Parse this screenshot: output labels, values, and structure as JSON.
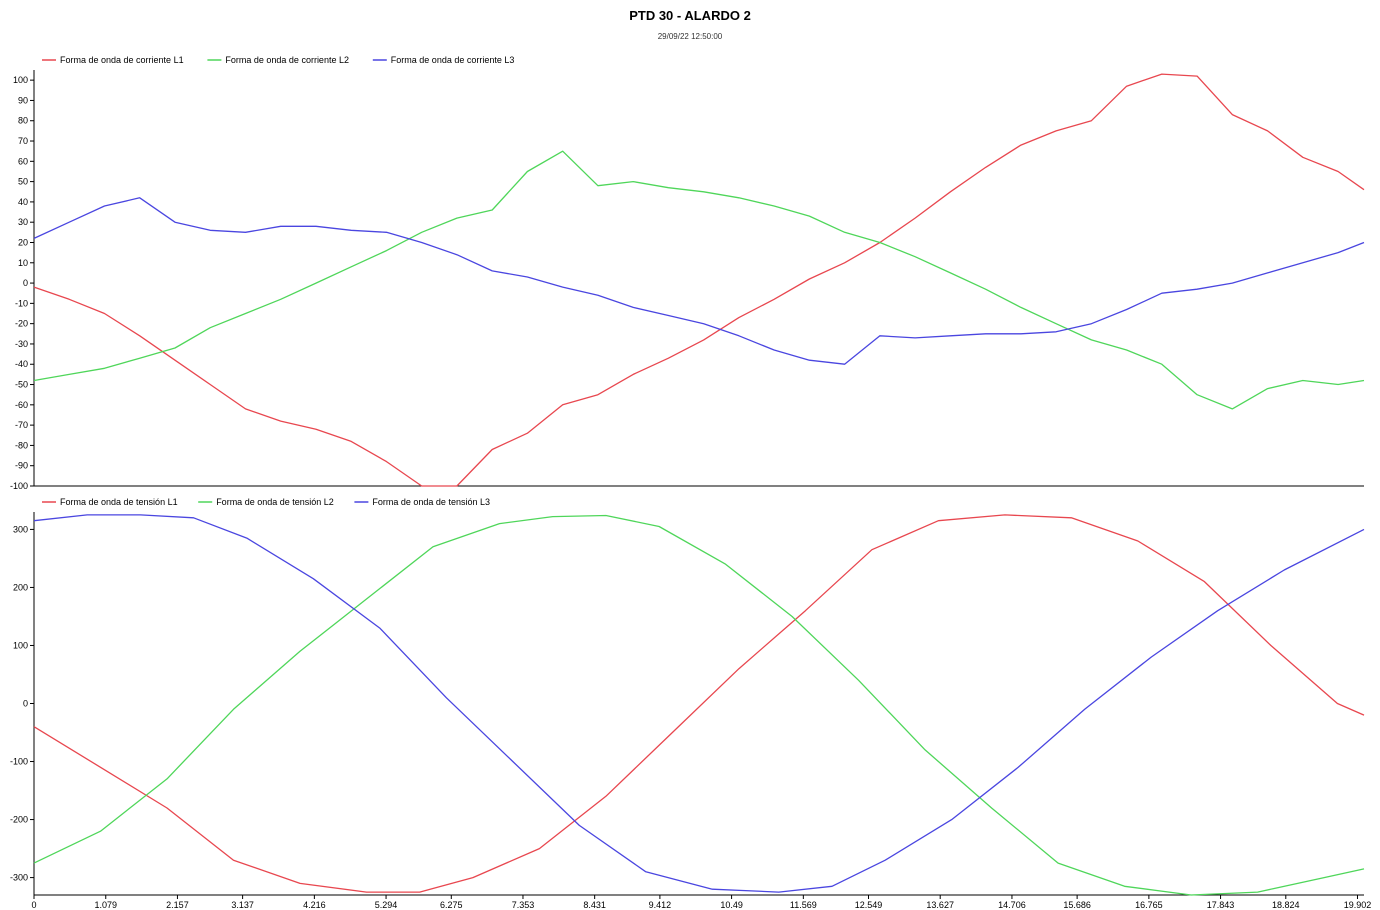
{
  "title": "PTD 30 - ALARDO 2",
  "subtitle": "29/09/22 12:50:00",
  "colors": {
    "L1": "#e8474f",
    "L2": "#4fd65a",
    "L3": "#4a46e0"
  },
  "chart_data": [
    {
      "type": "line",
      "title": "",
      "xlabel": "",
      "ylabel": "",
      "ylim": [
        -100,
        105
      ],
      "yticks": [
        "-100",
        "-90",
        "-80",
        "-70",
        "-60",
        "-50",
        "-40",
        "-30",
        "-20",
        "-10",
        "0",
        "10",
        "20",
        "30",
        "40",
        "50",
        "60",
        "70",
        "80",
        "90",
        "100"
      ],
      "legend_position": "top-left",
      "series": [
        {
          "name": "Forma de onda de corriente L1",
          "color_key": "L1",
          "x": [
            0,
            0.53,
            1.06,
            1.59,
            2.12,
            2.65,
            3.18,
            3.71,
            4.24,
            4.77,
            5.3,
            5.83,
            6.36,
            6.89,
            7.42,
            7.95,
            8.48,
            9.01,
            9.54,
            10.07,
            10.6,
            11.13,
            11.66,
            12.19,
            12.72,
            13.25,
            13.78,
            14.31,
            14.84,
            15.37,
            15.9,
            16.43,
            16.96,
            17.49,
            18.02,
            18.55,
            19.08,
            19.61,
            20.0
          ],
          "values": [
            -2,
            -8,
            -15,
            -26,
            -38,
            -50,
            -62,
            -68,
            -72,
            -78,
            -88,
            -100,
            -100,
            -82,
            -74,
            -60,
            -55,
            -45,
            -37,
            -28,
            -17,
            -8,
            2,
            10,
            20,
            32,
            45,
            57,
            68,
            75,
            80,
            97,
            103,
            102,
            83,
            75,
            62,
            55,
            46
          ]
        },
        {
          "name": "Forma de onda de corriente L2",
          "color_key": "L2",
          "x": [
            0,
            0.53,
            1.06,
            1.59,
            2.12,
            2.65,
            3.18,
            3.71,
            4.24,
            4.77,
            5.3,
            5.83,
            6.36,
            6.89,
            7.42,
            7.95,
            8.48,
            9.01,
            9.54,
            10.07,
            10.6,
            11.13,
            11.66,
            12.19,
            12.72,
            13.25,
            13.78,
            14.31,
            14.84,
            15.37,
            15.9,
            16.43,
            16.96,
            17.49,
            18.02,
            18.55,
            19.08,
            19.61,
            20.0
          ],
          "values": [
            -48,
            -45,
            -42,
            -37,
            -32,
            -22,
            -15,
            -8,
            0,
            8,
            16,
            25,
            32,
            36,
            55,
            65,
            48,
            50,
            47,
            45,
            42,
            38,
            33,
            25,
            20,
            13,
            5,
            -3,
            -12,
            -20,
            -28,
            -33,
            -40,
            -55,
            -62,
            -52,
            -48,
            -50,
            -48
          ]
        },
        {
          "name": "Forma de onda de corriente L3",
          "color_key": "L3",
          "x": [
            0,
            0.53,
            1.06,
            1.59,
            2.12,
            2.65,
            3.18,
            3.71,
            4.24,
            4.77,
            5.3,
            5.83,
            6.36,
            6.89,
            7.42,
            7.95,
            8.48,
            9.01,
            9.54,
            10.07,
            10.6,
            11.13,
            11.66,
            12.19,
            12.72,
            13.25,
            13.78,
            14.31,
            14.84,
            15.37,
            15.9,
            16.43,
            16.96,
            17.49,
            18.02,
            18.55,
            19.08,
            19.61,
            20.0
          ],
          "values": [
            22,
            30,
            38,
            42,
            30,
            26,
            25,
            28,
            28,
            26,
            25,
            20,
            14,
            6,
            3,
            -2,
            -6,
            -12,
            -16,
            -20,
            -26,
            -33,
            -38,
            -40,
            -26,
            -27,
            -26,
            -25,
            -25,
            -24,
            -20,
            -13,
            -5,
            -3,
            0,
            5,
            10,
            15,
            20
          ]
        }
      ]
    },
    {
      "type": "line",
      "title": "",
      "xlabel": "",
      "ylabel": "",
      "ylim": [
        -330,
        330
      ],
      "yticks": [
        "-300",
        "-200",
        "-100",
        "0",
        "100",
        "200",
        "300"
      ],
      "xticks": [
        "0",
        "1.079",
        "2.157",
        "3.137",
        "4.216",
        "5.294",
        "6.275",
        "7.353",
        "8.431",
        "9.412",
        "10.49",
        "11.569",
        "12.549",
        "13.627",
        "14.706",
        "15.686",
        "16.765",
        "17.843",
        "18.824",
        "19.902"
      ],
      "legend_position": "top-left",
      "series": [
        {
          "name": "Forma de onda de tensión L1",
          "color_key": "L1",
          "x": [
            0,
            1.0,
            2.0,
            3.0,
            4.0,
            5.0,
            5.8,
            6.6,
            7.6,
            8.6,
            9.6,
            10.6,
            11.6,
            12.6,
            13.6,
            14.6,
            15.6,
            16.6,
            17.6,
            18.6,
            19.6,
            20.0
          ],
          "values": [
            -40,
            -110,
            -180,
            -270,
            -310,
            -325,
            -325,
            -300,
            -250,
            -160,
            -50,
            60,
            160,
            265,
            315,
            325,
            320,
            280,
            210,
            100,
            0,
            -20
          ]
        },
        {
          "name": "Forma de onda de tensión L2",
          "color_key": "L2",
          "x": [
            0,
            1.0,
            2.0,
            3.0,
            4.0,
            5.0,
            6.0,
            7.0,
            7.8,
            8.6,
            9.4,
            10.4,
            11.4,
            12.4,
            13.4,
            14.4,
            15.4,
            16.4,
            17.4,
            18.4,
            19.4,
            20.0
          ],
          "values": [
            -275,
            -220,
            -130,
            -10,
            90,
            180,
            270,
            310,
            322,
            324,
            305,
            240,
            150,
            40,
            -80,
            -180,
            -275,
            -315,
            -330,
            -325,
            -300,
            -285
          ]
        },
        {
          "name": "Forma de onda de tensión L3",
          "color_key": "L3",
          "x": [
            0,
            0.8,
            1.6,
            2.4,
            3.2,
            4.2,
            5.2,
            6.2,
            7.2,
            8.2,
            9.2,
            10.2,
            11.2,
            12.0,
            12.8,
            13.8,
            14.8,
            15.8,
            16.8,
            17.8,
            18.8,
            20.0
          ],
          "values": [
            315,
            325,
            325,
            320,
            285,
            215,
            130,
            10,
            -100,
            -210,
            -290,
            -320,
            -325,
            -315,
            -270,
            -200,
            -110,
            -10,
            80,
            160,
            230,
            300
          ]
        }
      ]
    }
  ]
}
